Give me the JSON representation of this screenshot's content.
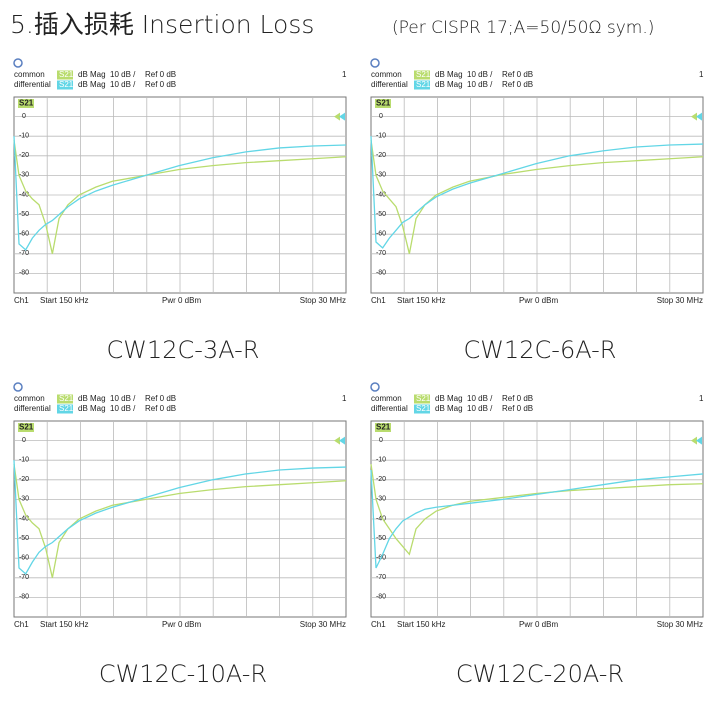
{
  "title": "5.插入损耗 Insertion Loss",
  "subtitle": "(Per CISPR 17;A=50/50Ω sym.)",
  "chart_data": [
    {
      "type": "line",
      "title": "CW12C-3A-R",
      "trace": "S21",
      "format": "dB Mag",
      "scale": "10 dB /",
      "ref": "Ref 0 dB",
      "channel_number": 1,
      "channel": "Ch1",
      "start": "Start 150 kHz",
      "power": "Pwr 0 dBm",
      "stop": "Stop 30 MHz",
      "x": [
        0.15,
        0.6,
        1.2,
        1.8,
        2.4,
        3.0,
        3.6,
        4.2,
        5,
        6,
        7.5,
        9,
        12,
        15,
        18,
        21,
        24,
        27,
        30
      ],
      "xlim": [
        0.15,
        30
      ],
      "ylim": [
        -90,
        10
      ],
      "yticks": [
        0,
        -10,
        -20,
        -30,
        -40,
        -50,
        -60,
        -70,
        -80
      ],
      "series": [
        {
          "name": "common",
          "color": "#b9dc6e",
          "values": [
            -12,
            -30,
            -38,
            -42,
            -45,
            -55,
            -70,
            -52,
            -45,
            -40,
            -36,
            -33,
            -30,
            -27,
            -25,
            -23.5,
            -22.5,
            -21.5,
            -20.5
          ]
        },
        {
          "name": "differential",
          "color": "#62d6e6",
          "values": [
            -10,
            -65,
            -68,
            -62,
            -58,
            -55,
            -53,
            -50,
            -46,
            -42,
            -38,
            -35,
            -30,
            -25,
            -21,
            -18,
            -16,
            -15,
            -14.5
          ]
        }
      ]
    },
    {
      "type": "line",
      "title": "CW12C-6A-R",
      "trace": "S21",
      "format": "dB Mag",
      "scale": "10 dB /",
      "ref": "Ref 0 dB",
      "channel_number": 1,
      "channel": "Ch1",
      "start": "Start 150 kHz",
      "power": "Pwr 0 dBm",
      "stop": "Stop 30 MHz",
      "x": [
        0.15,
        0.6,
        1.2,
        1.8,
        2.4,
        3.0,
        3.6,
        4.2,
        5,
        6,
        7.5,
        9,
        12,
        15,
        18,
        21,
        24,
        27,
        30
      ],
      "xlim": [
        0.15,
        30
      ],
      "ylim": [
        -90,
        10
      ],
      "yticks": [
        0,
        -10,
        -20,
        -30,
        -40,
        -50,
        -60,
        -70,
        -80
      ],
      "series": [
        {
          "name": "common",
          "color": "#b9dc6e",
          "values": [
            -12,
            -30,
            -38,
            -42,
            -46,
            -56,
            -70,
            -52,
            -45,
            -40,
            -36,
            -33,
            -29.5,
            -27,
            -25,
            -23.5,
            -22.5,
            -21.5,
            -20.5
          ]
        },
        {
          "name": "differential",
          "color": "#62d6e6",
          "values": [
            -10,
            -64,
            -67,
            -62,
            -58,
            -54,
            -52,
            -49,
            -45,
            -41,
            -37,
            -34,
            -29,
            -24,
            -20,
            -17.5,
            -15.5,
            -14.5,
            -14
          ]
        }
      ]
    },
    {
      "type": "line",
      "title": "CW12C-10A-R",
      "trace": "S21",
      "format": "dB Mag",
      "scale": "10 dB /",
      "ref": "Ref 0 dB",
      "channel_number": 1,
      "channel": "Ch1",
      "start": "Start 150 kHz",
      "power": "Pwr 0 dBm",
      "stop": "Stop 30 MHz",
      "x": [
        0.15,
        0.6,
        1.2,
        1.8,
        2.4,
        3.0,
        3.6,
        4.2,
        5,
        6,
        7.5,
        9,
        12,
        15,
        18,
        21,
        24,
        27,
        30
      ],
      "xlim": [
        0.15,
        30
      ],
      "ylim": [
        -90,
        10
      ],
      "yticks": [
        0,
        -10,
        -20,
        -30,
        -40,
        -50,
        -60,
        -70,
        -80
      ],
      "series": [
        {
          "name": "common",
          "color": "#b9dc6e",
          "values": [
            -12,
            -30,
            -38,
            -42,
            -45,
            -55,
            -70,
            -52,
            -45,
            -40,
            -36,
            -33,
            -30,
            -27,
            -25,
            -23.5,
            -22.5,
            -21.5,
            -20.5
          ]
        },
        {
          "name": "differential",
          "color": "#62d6e6",
          "values": [
            -10,
            -65,
            -68,
            -62,
            -57,
            -54,
            -52,
            -49,
            -45,
            -41,
            -37,
            -34,
            -29,
            -24,
            -20,
            -17,
            -15,
            -14,
            -13.5
          ]
        }
      ]
    },
    {
      "type": "line",
      "title": "CW12C-20A-R",
      "trace": "S21",
      "format": "dB Mag",
      "scale": "10 dB /",
      "ref": "Ref 0 dB",
      "channel_number": 1,
      "channel": "Ch1",
      "start": "Start 150 kHz",
      "power": "Pwr 0 dBm",
      "stop": "Stop 30 MHz",
      "x": [
        0.15,
        0.6,
        1.2,
        1.8,
        2.4,
        3.0,
        3.6,
        4.2,
        5,
        6,
        7.5,
        9,
        12,
        15,
        18,
        21,
        24,
        27,
        30
      ],
      "xlim": [
        0.15,
        30
      ],
      "ylim": [
        -90,
        10
      ],
      "yticks": [
        0,
        -10,
        -20,
        -30,
        -40,
        -50,
        -60,
        -70,
        -80
      ],
      "series": [
        {
          "name": "common",
          "color": "#b9dc6e",
          "values": [
            -12,
            -30,
            -40,
            -45,
            -50,
            -54,
            -58,
            -45,
            -40,
            -36,
            -33,
            -31,
            -29,
            -27,
            -25.5,
            -24.5,
            -23.5,
            -22.5,
            -22
          ]
        },
        {
          "name": "differential",
          "color": "#62d6e6",
          "values": [
            -15,
            -65,
            -58,
            -50,
            -45,
            -41,
            -39,
            -37,
            -35,
            -34,
            -33,
            -32,
            -30,
            -27.5,
            -25,
            -22.5,
            -20,
            -18.5,
            -17
          ]
        }
      ]
    }
  ]
}
